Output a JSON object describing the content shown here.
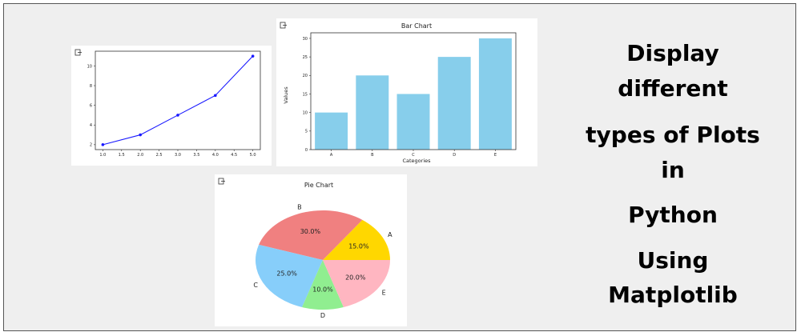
{
  "caption": [
    "Display",
    "different",
    "types of Plots",
    "in",
    "Python",
    "Using",
    "Matplotlib"
  ],
  "colors": {
    "line": "#1a1aff",
    "bar": "#87ceeb",
    "pie_a": "#ffd700",
    "pie_b": "#f08080",
    "pie_c": "#87cefa",
    "pie_d": "#90ee90",
    "pie_e": "#ffb6c1"
  },
  "chart_data": [
    {
      "type": "line",
      "title": "",
      "xlabel": "",
      "ylabel": "",
      "x": [
        1,
        2,
        3,
        4,
        5
      ],
      "y": [
        2,
        3,
        5,
        7,
        11
      ],
      "marker": "dot",
      "xticks": [
        "1.0",
        "1.5",
        "2.0",
        "2.5",
        "3.0",
        "3.5",
        "4.0",
        "4.5",
        "5.0"
      ],
      "yticks": [
        "2",
        "4",
        "6",
        "8",
        "10"
      ],
      "xlim": [
        0.8,
        5.2
      ],
      "ylim": [
        1.5,
        11.5
      ],
      "grid": false
    },
    {
      "type": "bar",
      "title": "Bar Chart",
      "xlabel": "Categories",
      "ylabel": "Values",
      "categories": [
        "A",
        "B",
        "C",
        "D",
        "E"
      ],
      "values": [
        10,
        20,
        15,
        25,
        30
      ],
      "yticks": [
        "0",
        "5",
        "10",
        "15",
        "20",
        "25",
        "30"
      ],
      "ylim": [
        0,
        31.5
      ],
      "grid": false
    },
    {
      "type": "pie",
      "title": "Pie Chart",
      "labels": [
        "A",
        "B",
        "C",
        "D",
        "E"
      ],
      "values": [
        15,
        30,
        25,
        10,
        20
      ],
      "pct_labels": [
        "15.0%",
        "30.0%",
        "25.0%",
        "10.0%",
        "20.0%"
      ],
      "startangle": 0
    }
  ]
}
